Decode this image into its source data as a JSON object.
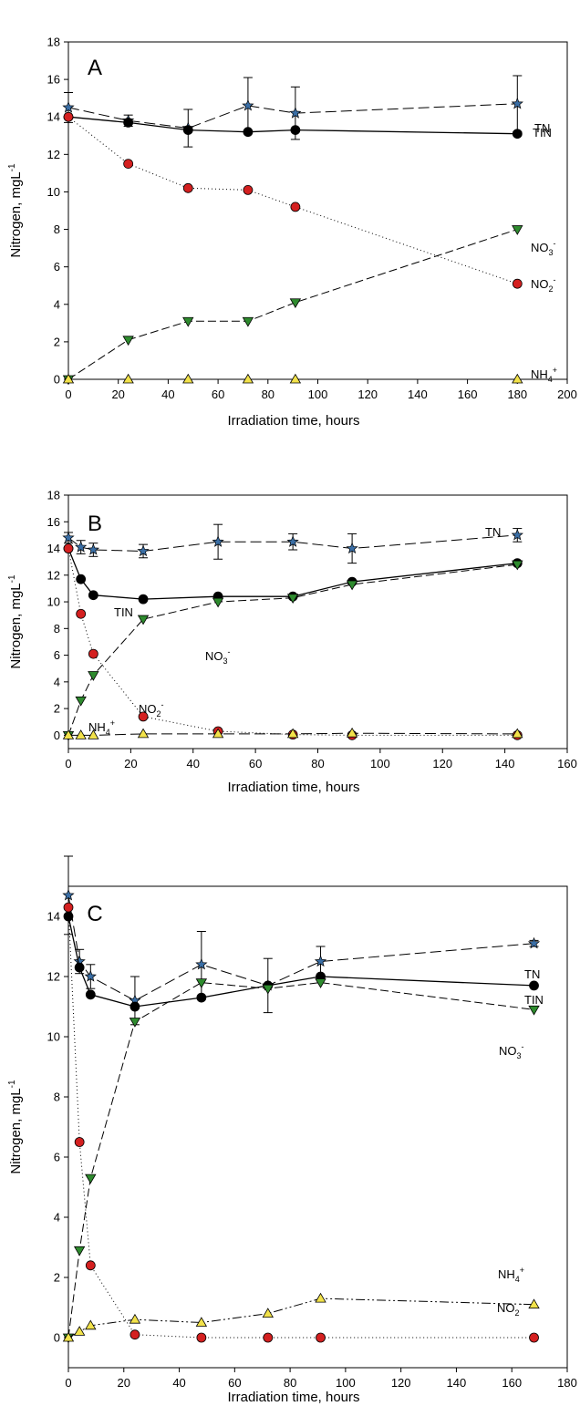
{
  "chart_data": [
    {
      "type": "line",
      "panel_label": "A",
      "xlabel": "Irradiation time, hours",
      "ylabel": "Nitrogen, mgL",
      "ylabel_sup": "-1",
      "xlim": [
        0,
        200
      ],
      "ylim": [
        0,
        18
      ],
      "x_ticks": [
        0,
        20,
        40,
        60,
        80,
        100,
        120,
        140,
        160,
        180,
        200
      ],
      "y_ticks": [
        0,
        2,
        4,
        6,
        8,
        10,
        12,
        14,
        16,
        18
      ],
      "grid": false,
      "series": [
        {
          "name": "TN",
          "marker": "star",
          "color": "#3a6ea5",
          "line": "longdash",
          "x": [
            0,
            24,
            48,
            72,
            91,
            180
          ],
          "y": [
            14.5,
            13.8,
            13.4,
            14.6,
            14.2,
            14.7
          ],
          "err": [
            0.8,
            0.3,
            1.0,
            1.5,
            1.4,
            1.5
          ]
        },
        {
          "name": "TIN",
          "marker": "circle",
          "color": "#000000",
          "line": "solid",
          "x": [
            0,
            24,
            48,
            72,
            91,
            180
          ],
          "y": [
            14.0,
            13.7,
            13.3,
            13.2,
            13.3,
            13.1
          ]
        },
        {
          "name": "NO3-",
          "label": "NO",
          "sub": "3",
          "sup": "-",
          "marker": "triangle-down",
          "color": "#2e8b2e",
          "line": "dash",
          "x": [
            0,
            24,
            48,
            72,
            91,
            180
          ],
          "y": [
            0.0,
            2.1,
            3.1,
            3.1,
            4.1,
            8.0
          ]
        },
        {
          "name": "NO2-",
          "label": "NO",
          "sub": "2",
          "sup": "-",
          "marker": "circle",
          "color": "#d42020",
          "line": "dot",
          "x": [
            0,
            24,
            48,
            72,
            91,
            180
          ],
          "y": [
            14.0,
            11.5,
            10.2,
            10.1,
            9.2,
            5.1
          ]
        },
        {
          "name": "NH4+",
          "label": "NH",
          "sub": "4",
          "sup": "+",
          "marker": "triangle-up",
          "color": "#f2e24a",
          "line": "dashdotdot",
          "x": [
            0,
            24,
            48,
            72,
            91,
            180
          ],
          "y": [
            0,
            0,
            0,
            0,
            0,
            0
          ]
        }
      ]
    },
    {
      "type": "line",
      "panel_label": "B",
      "xlabel": "Irradiation time, hours",
      "ylabel": "Nitrogen, mgL",
      "ylabel_sup": "-1",
      "xlim": [
        0,
        160
      ],
      "ylim": [
        -1,
        18
      ],
      "x_ticks": [
        0,
        20,
        40,
        60,
        80,
        100,
        120,
        140,
        160
      ],
      "y_ticks": [
        0,
        2,
        4,
        6,
        8,
        10,
        12,
        14,
        16,
        18
      ],
      "grid": false,
      "series": [
        {
          "name": "TN",
          "marker": "star",
          "color": "#3a6ea5",
          "line": "longdash",
          "x": [
            0,
            4,
            8,
            24,
            48,
            72,
            91,
            144
          ],
          "y": [
            14.8,
            14.1,
            13.9,
            13.8,
            14.5,
            14.5,
            14.0,
            15.0
          ],
          "err": [
            0.4,
            0.5,
            0.5,
            0.5,
            1.3,
            0.6,
            1.1,
            0.5
          ]
        },
        {
          "name": "TIN",
          "marker": "circle",
          "color": "#000000",
          "line": "solid",
          "x": [
            0,
            4,
            8,
            24,
            48,
            72,
            91,
            144
          ],
          "y": [
            14.0,
            11.7,
            10.5,
            10.2,
            10.4,
            10.4,
            11.5,
            12.9
          ]
        },
        {
          "name": "NO3-",
          "label": "NO",
          "sub": "3",
          "sup": "-",
          "marker": "triangle-down",
          "color": "#2e8b2e",
          "line": "dash",
          "x": [
            0,
            4,
            8,
            24,
            48,
            72,
            91,
            144
          ],
          "y": [
            0.0,
            2.6,
            4.5,
            8.7,
            10.0,
            10.3,
            11.3,
            12.8
          ]
        },
        {
          "name": "NO2-",
          "label": "NO",
          "sub": "2",
          "sup": "-",
          "marker": "circle",
          "color": "#d42020",
          "line": "dot",
          "x": [
            0,
            4,
            8,
            24,
            48,
            72,
            91,
            144
          ],
          "y": [
            14.0,
            9.1,
            6.1,
            1.4,
            0.3,
            0.05,
            0.0,
            0.0
          ]
        },
        {
          "name": "NH4+",
          "label": "NH",
          "sub": "4",
          "sup": "+",
          "marker": "triangle-up",
          "color": "#f2e24a",
          "line": "longdash",
          "x": [
            0,
            4,
            8,
            24,
            48,
            72,
            91,
            144
          ],
          "y": [
            0.0,
            0.0,
            0.0,
            0.1,
            0.1,
            0.1,
            0.15,
            0.1
          ]
        }
      ]
    },
    {
      "type": "line",
      "panel_label": "C",
      "xlabel": "Irradiation time, hours",
      "ylabel": "Nitrogen, mgL",
      "ylabel_sup": "-1",
      "xlim": [
        0,
        180
      ],
      "ylim": [
        -1,
        15
      ],
      "x_ticks": [
        0,
        20,
        40,
        60,
        80,
        100,
        120,
        140,
        160,
        180
      ],
      "y_ticks": [
        0,
        2,
        4,
        6,
        8,
        10,
        12,
        14
      ],
      "grid": false,
      "series": [
        {
          "name": "TN",
          "marker": "star",
          "color": "#3a6ea5",
          "line": "longdash",
          "x": [
            0,
            4,
            8,
            24,
            48,
            72,
            91,
            168
          ],
          "y": [
            14.7,
            12.5,
            12.0,
            11.2,
            12.4,
            11.7,
            12.5,
            13.1
          ],
          "err": [
            1.3,
            0.4,
            0.4,
            0.8,
            1.1,
            0.9,
            0.5,
            0.1
          ]
        },
        {
          "name": "TIN",
          "marker": "circle",
          "color": "#000000",
          "line": "solid",
          "x": [
            0,
            4,
            8,
            24,
            48,
            72,
            91,
            168
          ],
          "y": [
            14.0,
            12.3,
            11.4,
            11.0,
            11.3,
            11.7,
            12.0,
            11.7
          ]
        },
        {
          "name": "NO3-",
          "label": "NO",
          "sub": "3",
          "sup": "-",
          "marker": "triangle-down",
          "color": "#2e8b2e",
          "line": "dash",
          "x": [
            0,
            4,
            8,
            24,
            48,
            72,
            91,
            168
          ],
          "y": [
            0.0,
            2.9,
            5.3,
            10.5,
            11.8,
            11.6,
            11.8,
            10.9
          ]
        },
        {
          "name": "NO2-",
          "label": "NO",
          "sub": "2",
          "sup": "-",
          "marker": "circle",
          "color": "#d42020",
          "line": "dot",
          "x": [
            0,
            4,
            8,
            24,
            48,
            72,
            91,
            168
          ],
          "y": [
            14.3,
            6.5,
            2.4,
            0.1,
            0.0,
            0.0,
            0.0,
            0.0
          ]
        },
        {
          "name": "NH4+",
          "label": "NH",
          "sub": "4",
          "sup": "+",
          "marker": "triangle-up",
          "color": "#f2e24a",
          "line": "dashdotdot",
          "x": [
            0,
            4,
            8,
            24,
            48,
            72,
            91,
            168
          ],
          "y": [
            0.0,
            0.2,
            0.4,
            0.6,
            0.5,
            0.8,
            1.3,
            1.1
          ]
        }
      ]
    }
  ]
}
